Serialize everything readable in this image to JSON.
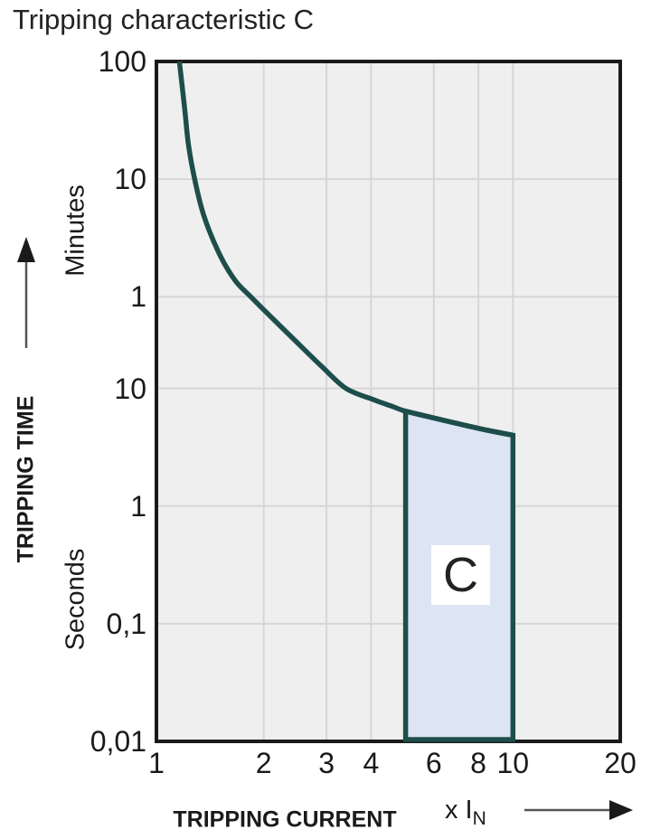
{
  "title": "Tripping characteristic C",
  "colors": {
    "curve": "#1d4e4b",
    "region_fill": "#dde4f3",
    "region_label_bg": "#ffffff",
    "plot_bg": "#efefef",
    "grid": "#d6d6d8",
    "border": "#1a1a1a",
    "text": "#1a1a1a"
  },
  "chart_data": {
    "type": "line",
    "title": "Tripping characteristic C",
    "x_axis": {
      "title": "TRIPPING CURRENT",
      "multiplier_prefix": "x I",
      "multiplier_subscript": "N",
      "scale": "log",
      "range_multiple_of_In": [
        1,
        20
      ],
      "ticks": [
        {
          "label": "1",
          "value": 1
        },
        {
          "label": "2",
          "value": 2
        },
        {
          "label": "3",
          "value": 3
        },
        {
          "label": "4",
          "value": 4
        },
        {
          "label": "6",
          "value": 6
        },
        {
          "label": "8",
          "value": 8
        },
        {
          "label": "10",
          "value": 10
        },
        {
          "label": "20",
          "value": 20
        }
      ],
      "gridline_values": [
        2,
        3,
        4,
        6,
        8,
        10
      ]
    },
    "y_axis": {
      "title": "TRIPPING TIME",
      "scale": "log",
      "range_seconds": [
        0.01,
        6000
      ],
      "unit_labels": [
        "Minutes",
        "Seconds"
      ],
      "ticks": [
        {
          "label": "100",
          "seconds": 6000,
          "unit": "minutes"
        },
        {
          "label": "10",
          "seconds": 600,
          "unit": "minutes"
        },
        {
          "label": "1",
          "seconds": 60,
          "unit": "minutes"
        },
        {
          "label": "10",
          "seconds": 10,
          "unit": "seconds"
        },
        {
          "label": "1",
          "seconds": 1,
          "unit": "seconds"
        },
        {
          "label": "0,1",
          "seconds": 0.1,
          "unit": "seconds"
        },
        {
          "label": "0,01",
          "seconds": 0.01,
          "unit": "seconds"
        }
      ],
      "gridline_seconds": [
        600,
        60,
        10,
        1,
        0.1
      ]
    },
    "series": [
      {
        "name": "Tripping characteristic C",
        "points_x_multiple_time_seconds": [
          [
            1.16,
            6000
          ],
          [
            1.2,
            2400
          ],
          [
            1.23,
            1180
          ],
          [
            1.28,
            600
          ],
          [
            1.36,
            290
          ],
          [
            1.5,
            140
          ],
          [
            1.66,
            83
          ],
          [
            1.84,
            60
          ],
          [
            2.16,
            37
          ],
          [
            2.5,
            24
          ],
          [
            2.9,
            15.5
          ],
          [
            3.4,
            10
          ],
          [
            4.07,
            8
          ],
          [
            4.6,
            7
          ],
          [
            5.0,
            6.4
          ],
          [
            6.0,
            5.6
          ],
          [
            7.25,
            4.9
          ],
          [
            8.5,
            4.4
          ],
          [
            10.0,
            4.0
          ]
        ]
      }
    ],
    "region": {
      "label": "C",
      "x_from": 5,
      "x_to": 10,
      "t_bottom_seconds": 0.01,
      "t_top_at_x_from_seconds": 6.4,
      "t_top_at_x_to_seconds": 4.0
    }
  }
}
